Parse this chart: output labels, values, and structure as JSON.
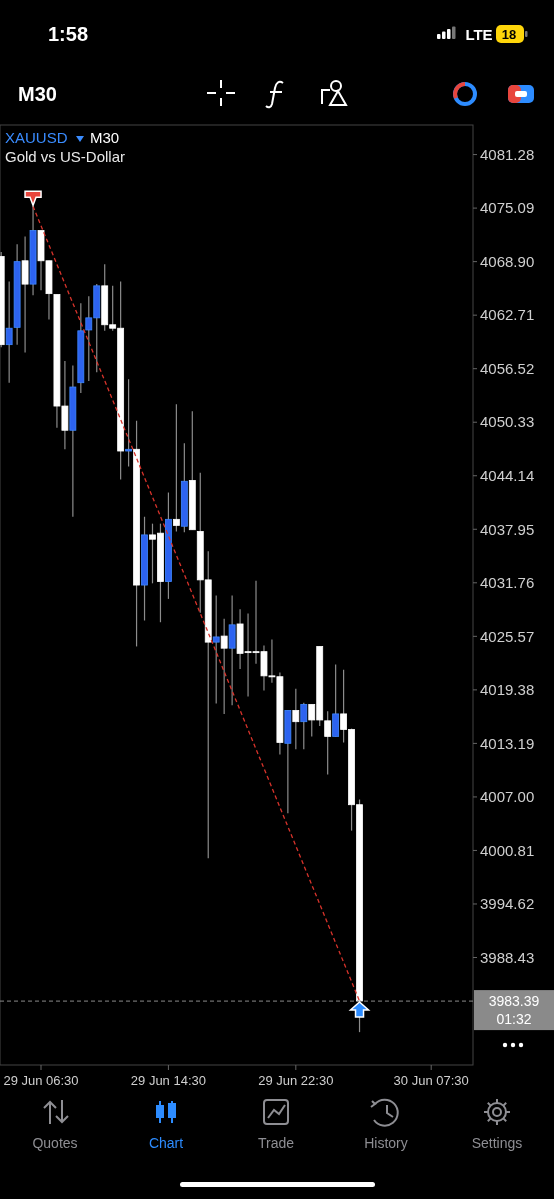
{
  "chart_data": {
    "type": "candlestick",
    "title": "XAUUSD",
    "subtitle": "Gold vs US-Dollar",
    "categories": [
      null,
      null,
      null,
      null,
      null,
      "29 Jun 06:30",
      null,
      null,
      null,
      null,
      null,
      null,
      null,
      null,
      null,
      null,
      null,
      null,
      null,
      null,
      null,
      "29 Jun 14:30",
      null,
      null,
      null,
      null,
      null,
      null,
      null,
      null,
      null,
      null,
      null,
      null,
      null,
      null,
      null,
      "29 Jun 22:30",
      null,
      null,
      null,
      null,
      null,
      null,
      null,
      null,
      null,
      null,
      null,
      null,
      null,
      null,
      null,
      null,
      "30 Jun 07:30",
      null
    ],
    "ohlc": [
      [
        4069.5,
        4070.0,
        4059.0,
        4059.3
      ],
      [
        4059.3,
        4066.6,
        4054.9,
        4061.2
      ],
      [
        4061.3,
        4070.9,
        4059.3,
        4068.9
      ],
      [
        4069.0,
        4071.8,
        4058.4,
        4066.3
      ],
      [
        4066.3,
        4075.3,
        4065.0,
        4072.5
      ],
      [
        4072.5,
        4072.5,
        4065.6,
        4069.0
      ],
      [
        4069.0,
        4069.0,
        4062.2,
        4065.2
      ],
      [
        4065.1,
        4065.1,
        4049.7,
        4052.2
      ],
      [
        4052.2,
        4057.4,
        4047.2,
        4049.4
      ],
      [
        4049.4,
        4056.9,
        4039.4,
        4054.4
      ],
      [
        4054.9,
        4064.1,
        4053.7,
        4060.9
      ],
      [
        4061.0,
        4064.9,
        4055.1,
        4062.4
      ],
      [
        4062.4,
        4066.3,
        4056.1,
        4066.1
      ],
      [
        4066.1,
        4068.6,
        4060.9,
        4061.6
      ],
      [
        4061.6,
        4066.1,
        4060.9,
        4061.2
      ],
      [
        4061.2,
        4066.6,
        4043.7,
        4047.0
      ],
      [
        4047.0,
        4055.3,
        4045.2,
        4047.2
      ],
      [
        4047.2,
        4050.5,
        4024.4,
        4031.5
      ],
      [
        4031.5,
        4039.4,
        4027.4,
        4037.3
      ],
      [
        4037.3,
        4038.6,
        4031.7,
        4036.8
      ],
      [
        4037.5,
        4038.6,
        4027.2,
        4031.9
      ],
      [
        4031.9,
        4042.2,
        4029.9,
        4039.1
      ],
      [
        4039.1,
        4052.4,
        4037.7,
        4038.4
      ],
      [
        4038.3,
        4047.9,
        4037.6,
        4043.5
      ],
      [
        4043.6,
        4051.6,
        4037.9,
        4037.9
      ],
      [
        4037.7,
        4044.5,
        4028.3,
        4032.1
      ],
      [
        4032.1,
        4035.4,
        3999.9,
        4024.9
      ],
      [
        4024.9,
        4030.3,
        4017.8,
        4025.5
      ],
      [
        4025.6,
        4027.6,
        4016.6,
        4024.2
      ],
      [
        4024.2,
        4030.3,
        4017.6,
        4026.9
      ],
      [
        4027.0,
        4028.7,
        4021.8,
        4023.6
      ],
      [
        4023.8,
        4028.2,
        4018.6,
        4023.7
      ],
      [
        4023.8,
        4032.0,
        4022.4,
        4023.7
      ],
      [
        4023.8,
        4024.5,
        4019.3,
        4021.0
      ],
      [
        4021.0,
        4025.2,
        4020.2,
        4020.9
      ],
      [
        4020.9,
        4021.4,
        4011.9,
        4013.3
      ],
      [
        4013.2,
        4017.0,
        4005.1,
        4017.0
      ],
      [
        4017.0,
        4019.5,
        4012.5,
        4015.7
      ],
      [
        4015.7,
        4017.9,
        4012.5,
        4017.7
      ],
      [
        4017.7,
        4017.7,
        4014.0,
        4015.9
      ],
      [
        4024.4,
        4024.4,
        4015.2,
        4015.9
      ],
      [
        4015.8,
        4016.9,
        4009.6,
        4014.0
      ],
      [
        4014.0,
        4022.3,
        4014.0,
        4016.6
      ],
      [
        4016.6,
        4021.7,
        4013.3,
        4014.8
      ],
      [
        4014.8,
        4014.9,
        4003.1,
        4006.1
      ],
      [
        4006.1,
        4006.7,
        3979.8,
        3983.4
      ],
      null,
      null,
      null,
      null,
      null,
      null,
      null,
      null,
      null,
      null
    ],
    "colors": [
      "#ffffff",
      "#2d63f0",
      "#2d63f0",
      "#ffffff",
      "#2d63f0",
      "#ffffff",
      "#ffffff",
      "#ffffff",
      "#ffffff",
      "#2d63f0",
      "#2d63f0",
      "#2d63f0",
      "#2d63f0",
      "#ffffff",
      "#ffffff",
      "#ffffff",
      "#2d63f0",
      "#ffffff",
      "#2d63f0",
      "#ffffff",
      "#ffffff",
      "#2d63f0",
      "#ffffff",
      "#2d63f0",
      "#ffffff",
      "#ffffff",
      "#ffffff",
      "#2d63f0",
      "#ffffff",
      "#2d63f0",
      "#ffffff",
      "#ffffff",
      "#ffffff",
      "#ffffff",
      "#ffffff",
      "#ffffff",
      "#2d63f0",
      "#ffffff",
      "#2d63f0",
      "#ffffff",
      "#ffffff",
      "#ffffff",
      "#2d63f0",
      "#ffffff",
      "#ffffff",
      "#ffffff",
      null,
      null,
      null,
      null,
      null,
      null,
      null,
      null,
      null,
      null
    ],
    "series": [
      {
        "type": "line",
        "values": [
          null,
          null,
          null,
          null,
          4075.3,
          null,
          null,
          null,
          null,
          null,
          null,
          null,
          null,
          null,
          null,
          null,
          null,
          null,
          null,
          null,
          null,
          null,
          null,
          null,
          null,
          null,
          null,
          null,
          null,
          null,
          null,
          null,
          null,
          null,
          null,
          null,
          null,
          null,
          null,
          null,
          null,
          null,
          null,
          null,
          null,
          3983.4,
          null,
          null,
          null,
          null,
          null,
          null,
          null,
          null,
          null,
          null
        ],
        "color": "#d8332b",
        "line_style": "dashed"
      }
    ],
    "ylim": [
      3976.0,
      4084.7
    ],
    "yticks": [
      4081.28,
      4075.09,
      {
        "value": 4068.9,
        "label": "4068.90"
      },
      4062.71,
      4056.52,
      4050.33,
      4044.14,
      4037.95,
      4031.76,
      4025.57,
      4019.38,
      4013.19,
      {
        "value": 4007.0,
        "label": "4007.00"
      },
      4000.81,
      3994.62,
      3988.43
    ],
    "ref_lines": [
      {
        "axis": "y",
        "value": 3983.39,
        "label": "3983.39",
        "color": "#8a8a8a",
        "line_style": "dashed"
      }
    ],
    "annotations": [
      "1:58",
      "LTE",
      "18",
      "M30",
      "M30",
      "01:32",
      "Quotes",
      "Chart",
      "Trade",
      "History",
      "Settings"
    ]
  }
}
